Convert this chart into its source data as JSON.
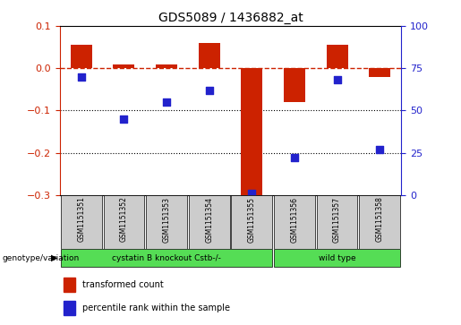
{
  "title": "GDS5089 / 1436882_at",
  "samples": [
    "GSM1151351",
    "GSM1151352",
    "GSM1151353",
    "GSM1151354",
    "GSM1151355",
    "GSM1151356",
    "GSM1151357",
    "GSM1151358"
  ],
  "bar_values_raw": [
    0.055,
    0.01,
    0.01,
    0.06,
    -0.3,
    -0.08,
    0.055,
    -0.02
  ],
  "percentile_values": [
    70,
    45,
    55,
    62,
    1,
    22,
    68,
    27
  ],
  "ylim_left": [
    -0.3,
    0.1
  ],
  "ylim_right": [
    0,
    100
  ],
  "yticks_left": [
    -0.3,
    -0.2,
    -0.1,
    0.0,
    0.1
  ],
  "yticks_right": [
    0,
    25,
    50,
    75,
    100
  ],
  "bar_color": "#CC2200",
  "dot_color": "#2222CC",
  "group1_samples": [
    0,
    1,
    2,
    3,
    4
  ],
  "group2_samples": [
    5,
    6,
    7
  ],
  "group1_label": "cystatin B knockout Cstb-/-",
  "group2_label": "wild type",
  "group_row_label": "genotype/variation",
  "group_color": "#55DD55",
  "legend_bar_label": "transformed count",
  "legend_dot_label": "percentile rank within the sample",
  "sample_box_color": "#CCCCCC",
  "title_fontsize": 10
}
